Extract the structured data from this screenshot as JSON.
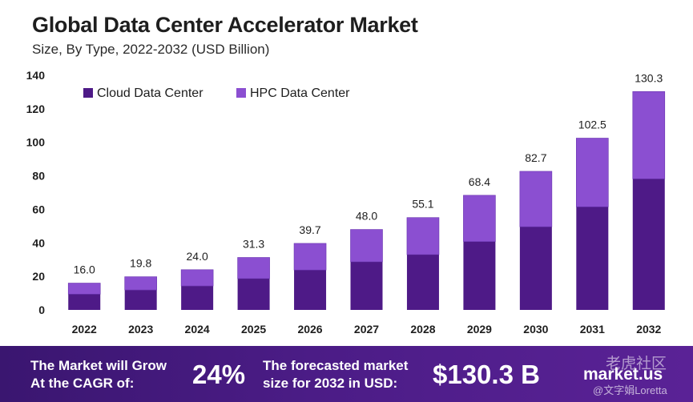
{
  "chart_data": {
    "type": "bar",
    "stacked": true,
    "title": "Global Data Center Accelerator Market",
    "subtitle": "Size, By Type, 2022-2032 (USD Billion)",
    "categories": [
      "2022",
      "2023",
      "2024",
      "2025",
      "2026",
      "2027",
      "2028",
      "2029",
      "2030",
      "2031",
      "2032"
    ],
    "series": [
      {
        "name": "Cloud Data Center",
        "color": "#4e1a87",
        "values": [
          9.4,
          11.9,
          14.3,
          18.7,
          23.8,
          28.7,
          33.0,
          40.8,
          49.6,
          61.5,
          78.2
        ]
      },
      {
        "name": "HPC Data Center",
        "color": "#8b4fd1",
        "values": [
          6.6,
          7.9,
          9.7,
          12.6,
          15.9,
          19.3,
          22.1,
          27.6,
          33.1,
          41.0,
          52.1
        ]
      }
    ],
    "totals": [
      "16.0",
      "19.8",
      "24.0",
      "31.3",
      "39.7",
      "48.0",
      "55.1",
      "68.4",
      "82.7",
      "102.5",
      "130.3"
    ],
    "ylim": [
      0,
      140
    ],
    "yticks": [
      0,
      20,
      40,
      60,
      80,
      100,
      120,
      140
    ],
    "legend_position": "top-left",
    "grid": false
  },
  "footer": {
    "cagr_line1": "The Market will Grow",
    "cagr_line2": "At the CAGR of:",
    "cagr_value": "24%",
    "forecast_line1": "The forecasted market",
    "forecast_line2": "size for 2032 in USD:",
    "forecast_value": "$130.3 B",
    "logo_text": "market.us",
    "watermark_1": "老虎社区",
    "watermark_2": "@文字娟Loretta"
  }
}
